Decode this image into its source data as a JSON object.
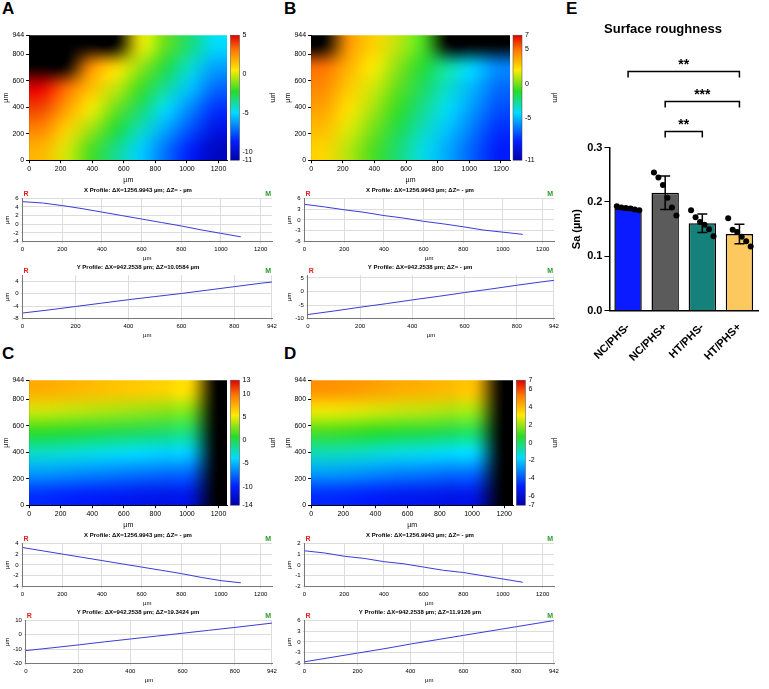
{
  "chart_data": [
    {
      "panel": "A",
      "type": "heatmap",
      "x_label": "µm",
      "y_label": "µm",
      "xlim": [
        0,
        1256.9943
      ],
      "xticks": [
        0,
        200,
        400,
        600,
        800,
        1000,
        1200
      ],
      "ylim": [
        0,
        944
      ],
      "yticks": [
        0,
        200,
        400,
        600,
        800,
        944
      ],
      "grid": false,
      "cells": [
        [
          null,
          null,
          null,
          null,
          0.3,
          -1.4,
          -3.2,
          -4.9
        ],
        [
          null,
          null,
          2.6,
          0.9,
          -0.8,
          -2.5,
          -4.3,
          -6.0
        ],
        [
          5.0,
          3.3,
          1.5,
          -0.2,
          -1.9,
          -3.6,
          -5.4,
          -7.1
        ],
        [
          3.9,
          2.2,
          0.4,
          -1.3,
          -3.0,
          -4.8,
          -6.5,
          -8.2
        ],
        [
          2.8,
          1.1,
          -0.7,
          -2.4,
          -4.1,
          -5.9,
          -7.6,
          -9.3
        ],
        [
          1.7,
          0.0,
          -1.8,
          -3.5,
          -5.2,
          -7.0,
          -8.7,
          -10.4
        ]
      ],
      "colorbar": {
        "label": "µm",
        "range": [
          -11,
          5
        ],
        "ticks": [
          -11,
          -10,
          -5,
          0,
          5
        ]
      }
    },
    {
      "panel": "A",
      "type": "line",
      "title": "X Profile: ΔX=1256.9943 µm; ΔZ= - µm",
      "x_label": "µm",
      "y_label": "µm",
      "x": [
        0,
        100,
        200,
        300,
        400,
        500,
        600,
        700,
        800,
        900,
        1000,
        1100
      ],
      "values": [
        5.2,
        4.9,
        4.3,
        3.6,
        2.8,
        2.0,
        1.2,
        0.4,
        -0.4,
        -1.3,
        -2.1,
        -2.9
      ],
      "color": "#3b3bd6",
      "xlim": [
        0,
        1256.9943
      ],
      "xticks": [
        0,
        200,
        400,
        600,
        800,
        1000,
        1200
      ],
      "ylim": [
        -4,
        6
      ],
      "yticks": [
        -4,
        -2,
        0,
        2,
        4,
        6
      ],
      "grid": true,
      "annotations": [
        {
          "text": "R",
          "color": "#e02020"
        },
        {
          "text": "M",
          "color": "#2a9a2a"
        }
      ]
    },
    {
      "panel": "A",
      "type": "line",
      "title": "Y Profile: ΔX=942.2538 µm; ΔZ=10.0584 µm",
      "x_label": "µm",
      "y_label": "µm",
      "x": [
        0,
        100,
        200,
        300,
        400,
        500,
        600,
        700,
        800,
        900,
        942
      ],
      "values": [
        -6.2,
        -5.2,
        -4.1,
        -3.0,
        -1.9,
        -0.9,
        0.1,
        1.2,
        2.3,
        3.4,
        3.8
      ],
      "color": "#3b3bd6",
      "xlim": [
        0,
        942.2538
      ],
      "xticks": [
        0,
        200,
        400,
        600,
        800,
        942
      ],
      "ylim": [
        -8,
        6
      ],
      "yticks": [
        -8,
        -4,
        0,
        4
      ],
      "grid": true,
      "annotations": [
        {
          "text": "R",
          "color": "#e02020"
        },
        {
          "text": "M",
          "color": "#2a9a2a"
        }
      ]
    },
    {
      "panel": "B",
      "type": "heatmap",
      "x_label": "µm",
      "y_label": "µm",
      "xlim": [
        0,
        1256.9943
      ],
      "xticks": [
        0,
        200,
        400,
        600,
        800,
        1000,
        1200
      ],
      "ylim": [
        0,
        944
      ],
      "yticks": [
        0,
        200,
        400,
        600,
        800,
        944
      ],
      "grid": false,
      "cells": [
        [
          null,
          4.1,
          2.6,
          1.0,
          -0.6,
          null,
          null,
          null
        ],
        [
          5.0,
          3.4,
          1.9,
          0.3,
          -1.3,
          -2.8,
          -4.4,
          -6.0
        ],
        [
          4.4,
          2.8,
          1.3,
          -0.3,
          -1.9,
          -3.4,
          -5.0,
          -6.6
        ],
        [
          3.8,
          2.2,
          0.7,
          -0.9,
          -2.5,
          -4.0,
          -5.6,
          -7.2
        ],
        [
          3.1,
          1.5,
          0.0,
          -1.6,
          -3.2,
          -4.7,
          -6.3,
          -7.9
        ],
        [
          2.5,
          0.9,
          -0.6,
          -2.2,
          -3.8,
          -5.3,
          -6.9,
          -8.5
        ]
      ],
      "colorbar": {
        "label": "µm",
        "range": [
          -11,
          7
        ],
        "ticks": [
          -11,
          -5,
          0,
          5,
          7
        ]
      }
    },
    {
      "panel": "B",
      "type": "line",
      "title": "X Profile: ΔX=1256.9943 µm; ΔZ= - µm",
      "x_label": "µm",
      "y_label": "µm",
      "x": [
        0,
        100,
        200,
        300,
        400,
        500,
        600,
        700,
        800,
        900,
        1000,
        1100
      ],
      "values": [
        4.3,
        3.6,
        2.8,
        2.1,
        1.2,
        0.5,
        -0.4,
        -1.1,
        -1.9,
        -2.8,
        -3.4,
        -4.0
      ],
      "color": "#3b3bd6",
      "xlim": [
        0,
        1256.9943
      ],
      "xticks": [
        0,
        200,
        400,
        600,
        800,
        1000,
        1200
      ],
      "ylim": [
        -6,
        6
      ],
      "yticks": [
        -6,
        -3,
        0,
        3,
        6
      ],
      "grid": true,
      "annotations": [
        {
          "text": "R",
          "color": "#e02020"
        },
        {
          "text": "M",
          "color": "#2a9a2a"
        }
      ]
    },
    {
      "panel": "B",
      "type": "line",
      "title": "Y Profile: ΔX=942.2538 µm; ΔZ= - µm",
      "x_label": "µm",
      "y_label": "µm",
      "x": [
        0,
        100,
        200,
        300,
        400,
        500,
        600,
        700,
        800,
        900,
        942
      ],
      "values": [
        -8.5,
        -7.2,
        -5.8,
        -4.5,
        -3.1,
        -1.8,
        -0.4,
        0.9,
        2.3,
        3.6,
        4.1
      ],
      "color": "#3b3bd6",
      "xlim": [
        0,
        942.2538
      ],
      "xticks": [
        0,
        200,
        400,
        600,
        800,
        942
      ],
      "ylim": [
        -10,
        6
      ],
      "yticks": [
        -10,
        -5,
        0,
        5
      ],
      "grid": true,
      "annotations": [
        {
          "text": "R",
          "color": "#e02020"
        },
        {
          "text": "M",
          "color": "#2a9a2a"
        }
      ]
    },
    {
      "panel": "C",
      "type": "heatmap",
      "x_label": "µm",
      "y_label": "µm",
      "xlim": [
        0,
        1256.9943
      ],
      "xticks": [
        0,
        200,
        400,
        600,
        800,
        1000,
        1200
      ],
      "ylim": [
        0,
        944
      ],
      "yticks": [
        0,
        200,
        400,
        600,
        800,
        944
      ],
      "grid": false,
      "cells": [
        [
          7.8,
          7.5,
          7.2,
          6.9,
          6.6,
          6.3,
          6.0,
          null
        ],
        [
          4.4,
          4.1,
          3.8,
          3.5,
          3.2,
          2.9,
          2.6,
          null
        ],
        [
          0.9,
          0.6,
          0.3,
          0.0,
          -0.3,
          -0.6,
          -0.9,
          null
        ],
        [
          -2.6,
          -2.9,
          -3.2,
          -3.5,
          -3.8,
          -4.1,
          -4.4,
          null
        ],
        [
          -6.0,
          -6.3,
          -6.6,
          -6.9,
          -7.2,
          -7.5,
          -7.8,
          null
        ],
        [
          -9.5,
          -9.8,
          -10.1,
          -10.4,
          -10.7,
          -11.0,
          -11.3,
          null
        ]
      ],
      "colorbar": {
        "label": "µm",
        "range": [
          -14,
          13
        ],
        "ticks": [
          -14,
          -10,
          -5,
          0,
          5,
          10,
          13
        ]
      }
    },
    {
      "panel": "C",
      "type": "line",
      "title": "X Profile: ΔX=1256.9943 µm; ΔZ= - µm",
      "x_label": "µm",
      "y_label": "µm",
      "x": [
        0,
        100,
        200,
        300,
        400,
        500,
        600,
        700,
        800,
        900,
        1000,
        1100
      ],
      "values": [
        3.2,
        2.6,
        2.0,
        1.4,
        0.8,
        0.2,
        -0.4,
        -1.0,
        -1.6,
        -2.3,
        -2.9,
        -3.3
      ],
      "color": "#3b3bd6",
      "xlim": [
        0,
        1256.9943
      ],
      "xticks": [
        0,
        200,
        400,
        600,
        800,
        1000,
        1200
      ],
      "ylim": [
        -4,
        4
      ],
      "yticks": [
        -4,
        -2,
        0,
        2,
        4
      ],
      "grid": true,
      "annotations": [
        {
          "text": "R",
          "color": "#e02020"
        },
        {
          "text": "M",
          "color": "#2a9a2a"
        }
      ]
    },
    {
      "panel": "C",
      "type": "line",
      "title": "Y Profile: ΔX=942.2538 µm; ΔZ=19.3424 µm",
      "x_label": "µm",
      "y_label": "µm",
      "x": [
        0,
        100,
        200,
        300,
        400,
        500,
        600,
        700,
        800,
        900,
        942
      ],
      "values": [
        -11.0,
        -9.1,
        -7.1,
        -5.0,
        -3.0,
        -1.0,
        1.0,
        3.0,
        5.0,
        7.1,
        8.0
      ],
      "color": "#3b3bd6",
      "xlim": [
        0,
        942.2538
      ],
      "xticks": [
        0,
        200,
        400,
        600,
        800,
        942
      ],
      "ylim": [
        -20,
        10
      ],
      "yticks": [
        -20,
        -10,
        0,
        10
      ],
      "grid": true,
      "annotations": [
        {
          "text": "R",
          "color": "#e02020"
        },
        {
          "text": "M",
          "color": "#2a9a2a"
        }
      ]
    },
    {
      "panel": "D",
      "type": "heatmap",
      "x_label": "µm",
      "y_label": "µm",
      "xlim": [
        0,
        1256.9943
      ],
      "xticks": [
        0,
        200,
        400,
        600,
        800,
        1000,
        1200
      ],
      "ylim": [
        0,
        944
      ],
      "yticks": [
        0,
        200,
        400,
        600,
        800,
        944
      ],
      "grid": false,
      "cells": [
        [
          4.8,
          4.7,
          4.5,
          4.3,
          4.2,
          4.0,
          3.9,
          null
        ],
        [
          2.9,
          2.8,
          2.6,
          2.4,
          2.3,
          2.1,
          2.0,
          null
        ],
        [
          1.0,
          0.9,
          0.7,
          0.5,
          0.4,
          0.2,
          0.1,
          null
        ],
        [
          -0.9,
          -1.0,
          -1.2,
          -1.4,
          -1.5,
          -1.7,
          -1.8,
          null
        ],
        [
          -2.8,
          -2.9,
          -3.1,
          -3.3,
          -3.4,
          -3.6,
          -3.7,
          null
        ],
        [
          -4.7,
          -4.8,
          -5.0,
          -5.2,
          -5.3,
          -5.5,
          -5.6,
          null
        ]
      ],
      "colorbar": {
        "label": "µm",
        "range": [
          -7,
          7
        ],
        "ticks": [
          -7,
          -6,
          -4,
          -2,
          0,
          2,
          4,
          6,
          7
        ]
      }
    },
    {
      "panel": "D",
      "type": "line",
      "title": "X Profile: ΔX=1256.9943 µm; ΔZ= - µm",
      "x_label": "µm",
      "y_label": "µm",
      "x": [
        0,
        100,
        200,
        300,
        400,
        500,
        600,
        700,
        800,
        900,
        1000,
        1100
      ],
      "values": [
        1.3,
        1.1,
        0.8,
        0.6,
        0.3,
        0.1,
        -0.2,
        -0.5,
        -0.7,
        -1.0,
        -1.3,
        -1.6
      ],
      "color": "#3b3bd6",
      "xlim": [
        0,
        1256.9943
      ],
      "xticks": [
        0,
        200,
        400,
        600,
        800,
        1000,
        1200
      ],
      "ylim": [
        -2,
        2
      ],
      "yticks": [
        -2,
        -1,
        0,
        1,
        2
      ],
      "grid": true,
      "annotations": [
        {
          "text": "R",
          "color": "#e02020"
        },
        {
          "text": "M",
          "color": "#2a9a2a"
        }
      ]
    },
    {
      "panel": "D",
      "type": "line",
      "title": "Y Profile: ΔX=942.2538 µm; ΔZ=11.9126 µm",
      "x_label": "µm",
      "y_label": "µm",
      "x": [
        0,
        100,
        200,
        300,
        400,
        500,
        600,
        700,
        800,
        900,
        942
      ],
      "values": [
        -5.5,
        -4.3,
        -3.1,
        -1.9,
        -0.6,
        0.6,
        1.8,
        3.0,
        4.2,
        5.4,
        5.9
      ],
      "color": "#3b3bd6",
      "xlim": [
        0,
        942.2538
      ],
      "xticks": [
        0,
        200,
        400,
        600,
        800,
        942
      ],
      "ylim": [
        -6,
        6
      ],
      "yticks": [
        -6,
        -3,
        0,
        3,
        6
      ],
      "grid": true,
      "annotations": [
        {
          "text": "R",
          "color": "#e02020"
        },
        {
          "text": "M",
          "color": "#2a9a2a"
        }
      ]
    },
    {
      "panel": "E",
      "type": "bar",
      "title": "Surface roughness",
      "y_label": "Sa (µm)",
      "categories": [
        "NC/PHS-",
        "NC/PHS+",
        "HT/PHS-",
        "HT/PHS+"
      ],
      "values": [
        0.188,
        0.217,
        0.161,
        0.141
      ],
      "errors": [
        0.003,
        0.031,
        0.017,
        0.018
      ],
      "points": [
        [
          0.192,
          0.19,
          0.189,
          0.188,
          0.186,
          0.185
        ],
        [
          0.254,
          0.245,
          0.231,
          0.208,
          0.19,
          0.175
        ],
        [
          0.185,
          0.172,
          0.163,
          0.158,
          0.15,
          0.137
        ],
        [
          0.17,
          0.149,
          0.145,
          0.136,
          0.128,
          0.118
        ]
      ],
      "colors": [
        "#0a1cff",
        "#5b5b5b",
        "#16807a",
        "#fdc95f"
      ],
      "ylim": [
        0,
        0.3
      ],
      "yticks": [
        {
          "value": 0,
          "label": "0.0"
        },
        0.1,
        0.2,
        0.3
      ],
      "grid": false,
      "comparisons": [
        {
          "from": "NC/PHS+",
          "to": "HT/PHS-",
          "label": "**"
        },
        {
          "from": "NC/PHS+",
          "to": "HT/PHS+",
          "label": "***"
        },
        {
          "from": "NC/PHS-",
          "to": "HT/PHS+",
          "label": "**"
        }
      ]
    }
  ]
}
